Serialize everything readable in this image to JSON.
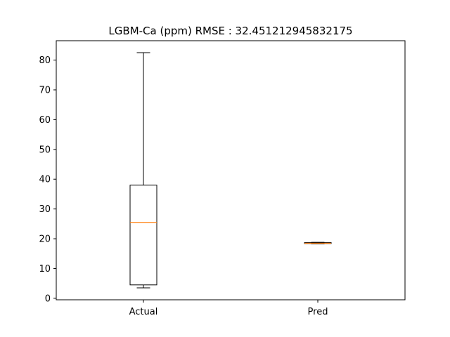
{
  "chart_data": {
    "type": "boxplot",
    "title": "LGBM-Ca (ppm) RMSE : 32.451212945832175",
    "xlabel": "",
    "ylabel": "",
    "categories": [
      "Actual",
      "Pred"
    ],
    "boxes": [
      {
        "label": "Actual",
        "whisker_low": 3.5,
        "q1": 4.5,
        "median": 25.5,
        "q3": 38.0,
        "whisker_high": 82.5
      },
      {
        "label": "Pred",
        "whisker_low": 18.3,
        "q1": 18.4,
        "median": 18.5,
        "q3": 18.7,
        "whisker_high": 18.8
      }
    ],
    "y_ticks": [
      0,
      10,
      20,
      30,
      40,
      50,
      60,
      70,
      80
    ],
    "ylim": [
      -0.5,
      86.5
    ],
    "grid": false,
    "colors": {
      "box": "#000000",
      "median": "#ff7f0e"
    }
  }
}
